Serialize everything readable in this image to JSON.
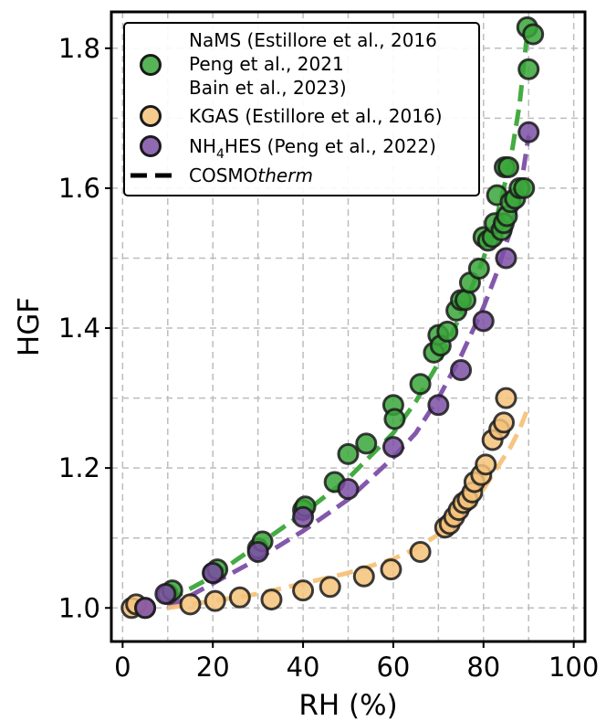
{
  "chart_data": {
    "type": "scatter",
    "xlabel": "RH (%)",
    "ylabel": "HGF",
    "xlim": [
      -2.5,
      102.5
    ],
    "ylim": [
      0.952,
      1.852
    ],
    "x_ticks": [
      0,
      20,
      40,
      60,
      80,
      100
    ],
    "x_tick_labels": [
      "0",
      "20",
      "40",
      "60",
      "80",
      "100"
    ],
    "y_ticks": [
      1.0,
      1.2,
      1.4,
      1.6,
      1.8
    ],
    "y_tick_labels": [
      "1.0",
      "1.2",
      "1.4",
      "1.6",
      "1.8"
    ],
    "grid_x": [
      0,
      10,
      20,
      30,
      40,
      50,
      60,
      70,
      80,
      90,
      100
    ],
    "grid_y": [
      1.0,
      1.1,
      1.2,
      1.3,
      1.4,
      1.5,
      1.6,
      1.7,
      1.8
    ],
    "grid": true,
    "legend_position": "top-left",
    "legend": [
      {
        "marker": "circle",
        "color": "#3aa639",
        "lines": [
          "NaMS (Estillore et al., 2016",
          "Peng et al., 2021",
          "Bain et al., 2023)"
        ]
      },
      {
        "marker": "circle",
        "color": "#f5c27a",
        "lines": [
          "KGAS (Estillore et al., 2016)"
        ]
      },
      {
        "marker": "circle",
        "color": "#7c4fa6",
        "label_main": "NH",
        "label_sub": "4",
        "label_rest": "HES (Peng et al., 2022)"
      },
      {
        "marker": "dashed-line",
        "color": "#000000",
        "label_main": "COSMO",
        "label_italic": "therm"
      }
    ],
    "series": [
      {
        "kind": "scatter",
        "color": "#3aa639",
        "points": [
          [
            10,
            1.02
          ],
          [
            11,
            1.025
          ],
          [
            20,
            1.05
          ],
          [
            21,
            1.055
          ],
          [
            30,
            1.085
          ],
          [
            31,
            1.095
          ],
          [
            40,
            1.14
          ],
          [
            40.5,
            1.145
          ],
          [
            47,
            1.18
          ],
          [
            50,
            1.22
          ],
          [
            54,
            1.235
          ],
          [
            60,
            1.29
          ],
          [
            60.3,
            1.27
          ],
          [
            66,
            1.32
          ],
          [
            69,
            1.365
          ],
          [
            70,
            1.39
          ],
          [
            70.5,
            1.375
          ],
          [
            72,
            1.395
          ],
          [
            74,
            1.425
          ],
          [
            75,
            1.44
          ],
          [
            76,
            1.44
          ],
          [
            77,
            1.465
          ],
          [
            79,
            1.485
          ],
          [
            80,
            1.53
          ],
          [
            81,
            1.525
          ],
          [
            82,
            1.53
          ],
          [
            82.5,
            1.55
          ],
          [
            83,
            1.59
          ],
          [
            84,
            1.54
          ],
          [
            84.5,
            1.55
          ],
          [
            84.7,
            1.63
          ],
          [
            85.5,
            1.63
          ],
          [
            85.2,
            1.56
          ],
          [
            86,
            1.58
          ],
          [
            87,
            1.585
          ],
          [
            88,
            1.6
          ],
          [
            89,
            1.6
          ],
          [
            89.7,
            1.83
          ],
          [
            90,
            1.77
          ],
          [
            91,
            1.82
          ]
        ]
      },
      {
        "kind": "scatter",
        "color": "#f5c27a",
        "points": [
          [
            2,
            1.0
          ],
          [
            3,
            1.005
          ],
          [
            5,
            1.0
          ],
          [
            15,
            1.005
          ],
          [
            20.5,
            1.01
          ],
          [
            26,
            1.015
          ],
          [
            33,
            1.012
          ],
          [
            40,
            1.025
          ],
          [
            46,
            1.03
          ],
          [
            53.5,
            1.045
          ],
          [
            59.5,
            1.055
          ],
          [
            66,
            1.08
          ],
          [
            71.5,
            1.115
          ],
          [
            72.5,
            1.12
          ],
          [
            73.5,
            1.13
          ],
          [
            74.5,
            1.14
          ],
          [
            75.5,
            1.15
          ],
          [
            76.5,
            1.155
          ],
          [
            77.5,
            1.165
          ],
          [
            78,
            1.18
          ],
          [
            79.5,
            1.19
          ],
          [
            80.5,
            1.205
          ],
          [
            82,
            1.24
          ],
          [
            83.5,
            1.255
          ],
          [
            84.5,
            1.265
          ],
          [
            85,
            1.3
          ]
        ]
      },
      {
        "kind": "scatter",
        "color": "#7c4fa6",
        "points": [
          [
            5,
            1.0
          ],
          [
            9.5,
            1.02
          ],
          [
            20,
            1.05
          ],
          [
            30,
            1.08
          ],
          [
            40,
            1.13
          ],
          [
            50,
            1.17
          ],
          [
            60,
            1.23
          ],
          [
            70,
            1.29
          ],
          [
            75,
            1.34
          ],
          [
            80,
            1.41
          ],
          [
            85,
            1.5
          ],
          [
            90,
            1.68
          ]
        ]
      },
      {
        "kind": "line",
        "color": "#3aa639",
        "points": [
          [
            10,
            1.01
          ],
          [
            20,
            1.045
          ],
          [
            30,
            1.09
          ],
          [
            40,
            1.135
          ],
          [
            50,
            1.185
          ],
          [
            60,
            1.25
          ],
          [
            65,
            1.295
          ],
          [
            70,
            1.35
          ],
          [
            75,
            1.42
          ],
          [
            80,
            1.5
          ],
          [
            83,
            1.56
          ],
          [
            86,
            1.64
          ],
          [
            88,
            1.72
          ],
          [
            89.5,
            1.81
          ]
        ]
      },
      {
        "kind": "line",
        "color": "#7c4fa6",
        "points": [
          [
            10,
            1.0
          ],
          [
            20,
            1.035
          ],
          [
            30,
            1.07
          ],
          [
            40,
            1.11
          ],
          [
            50,
            1.155
          ],
          [
            60,
            1.215
          ],
          [
            65,
            1.25
          ],
          [
            70,
            1.3
          ],
          [
            75,
            1.36
          ],
          [
            80,
            1.43
          ],
          [
            83,
            1.48
          ],
          [
            86,
            1.54
          ],
          [
            88,
            1.59
          ],
          [
            90,
            1.675
          ]
        ]
      },
      {
        "kind": "line",
        "color": "#f5c27a",
        "points": [
          [
            10,
            1.0
          ],
          [
            20,
            1.01
          ],
          [
            30,
            1.02
          ],
          [
            40,
            1.035
          ],
          [
            50,
            1.05
          ],
          [
            60,
            1.07
          ],
          [
            65,
            1.085
          ],
          [
            70,
            1.105
          ],
          [
            75,
            1.135
          ],
          [
            80,
            1.17
          ],
          [
            83,
            1.2
          ],
          [
            86,
            1.23
          ],
          [
            88,
            1.255
          ],
          [
            89.5,
            1.28
          ]
        ]
      }
    ]
  }
}
